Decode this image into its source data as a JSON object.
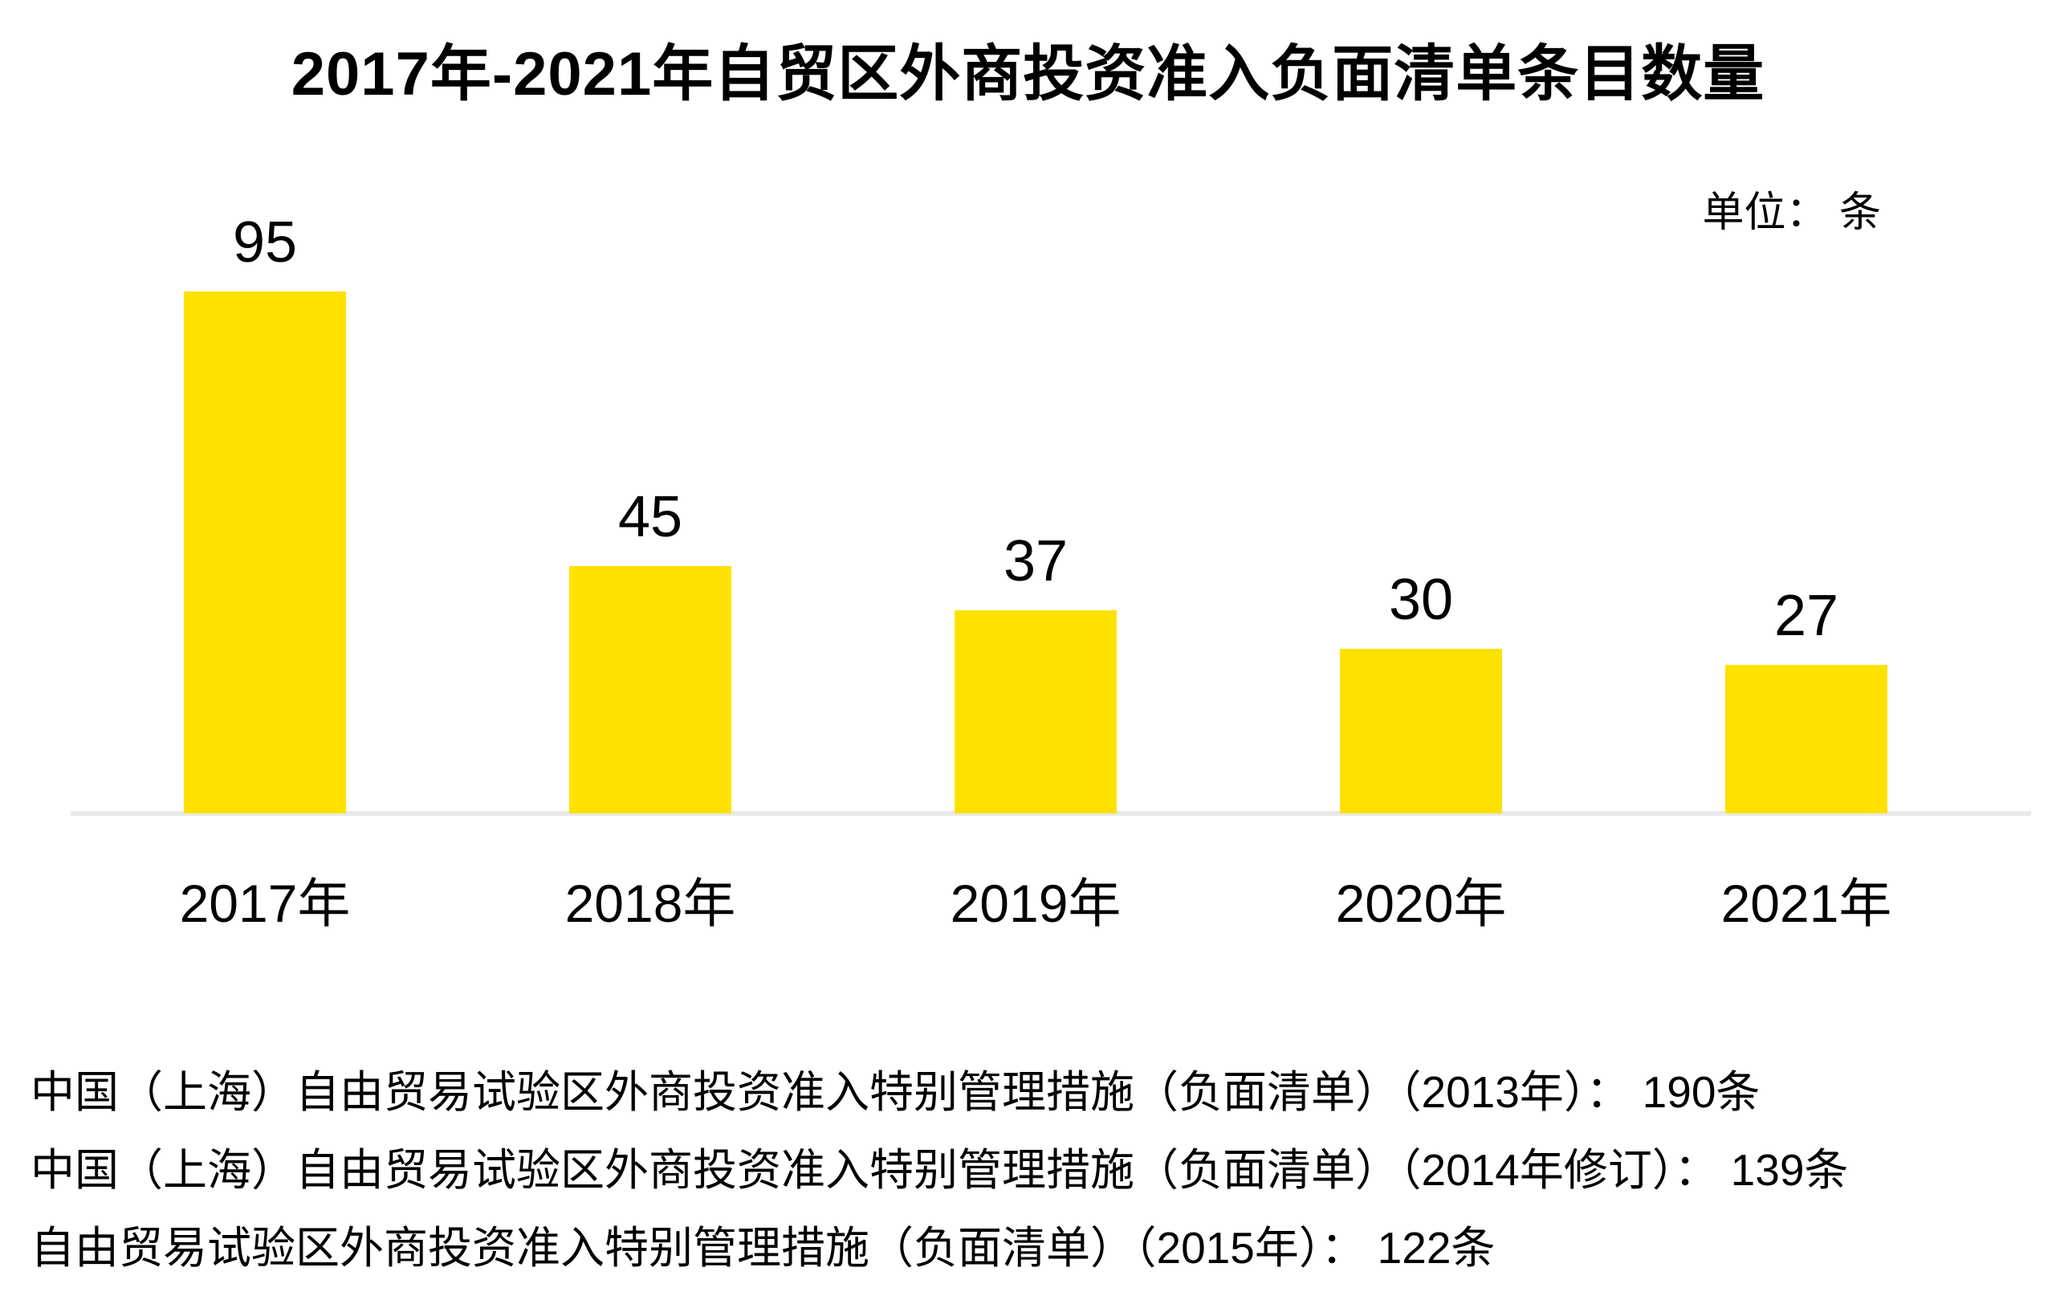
{
  "title": "2017年-2021年自贸区外商投资准入负面清单条目数量",
  "unit_label": "单位： 条",
  "chart_data": {
    "type": "bar",
    "title": "2017年-2021年自贸区外商投资准入负面清单条目数量",
    "categories": [
      "2017年",
      "2018年",
      "2019年",
      "2020年",
      "2021年"
    ],
    "values": [
      95,
      45,
      37,
      30,
      27
    ],
    "xlabel": "",
    "ylabel": "条",
    "ylim": [
      0,
      100
    ],
    "grid": false,
    "legend_position": "none",
    "value_labels_shown": true,
    "unit": "条"
  },
  "footnotes": [
    "中国（上海）自由贸易试验区外商投资准入特别管理措施（负面清单）（2013年）： 190条",
    "中国（上海）自由贸易试验区外商投资准入特别管理措施（负面清单）（2014年修订）： 139条",
    "自由贸易试验区外商投资准入特别管理措施（负面清单）（2015年）： 122条"
  ],
  "colors": {
    "bar": "#FFE100",
    "baseline": "#E9E9E9",
    "text": "#000000",
    "background": "#FFFFFF"
  }
}
